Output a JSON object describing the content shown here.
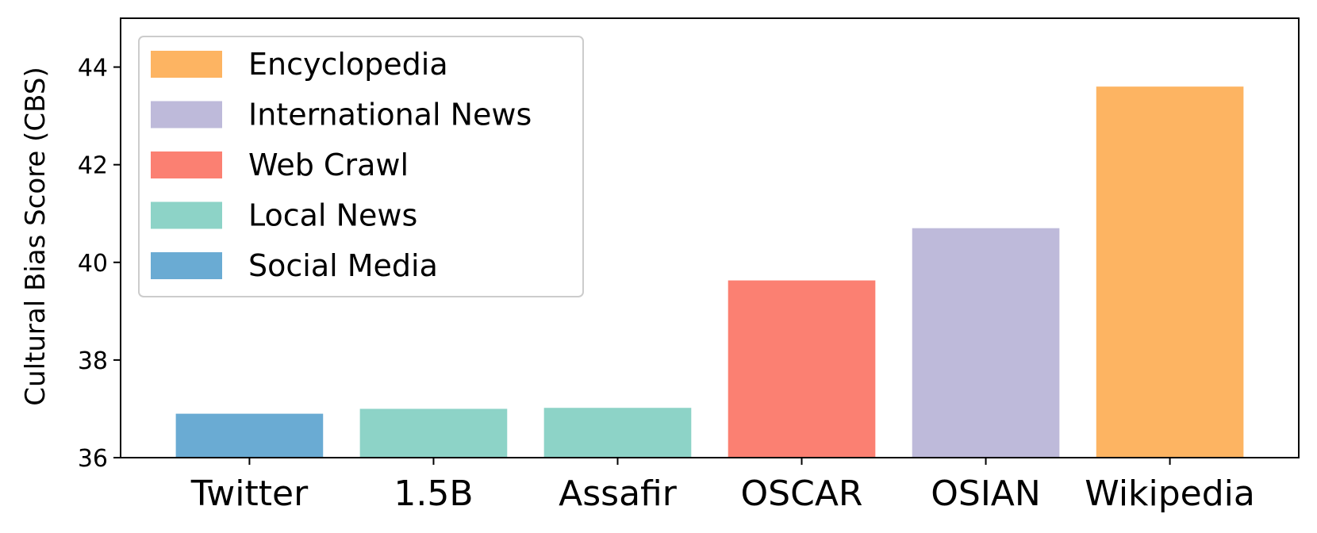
{
  "chart_data": {
    "type": "bar",
    "title": "",
    "xlabel": "",
    "ylabel": "Cultural Bias Score (CBS)",
    "ylim": [
      36,
      45
    ],
    "yticks": [
      "36",
      "38",
      "40",
      "42",
      "44"
    ],
    "grid": false,
    "legend_position": "top-left",
    "categories": [
      "Twitter",
      "1.5B",
      "Assafir",
      "OSCAR",
      "OSIAN",
      "Wikipedia"
    ],
    "values": [
      36.9,
      37.0,
      37.02,
      39.63,
      40.7,
      43.6
    ],
    "bar_groups": [
      "Social Media",
      "Local News",
      "Local News",
      "Web Crawl",
      "International News",
      "Encyclopedia"
    ],
    "legend": [
      {
        "label": "Encyclopedia",
        "color": "#FDB462"
      },
      {
        "label": "International News",
        "color": "#BEBADA"
      },
      {
        "label": "Web Crawl",
        "color": "#FB8072"
      },
      {
        "label": "Local News",
        "color": "#8DD3C7"
      },
      {
        "label": "Social Media",
        "color": "#6AABD3"
      }
    ]
  }
}
